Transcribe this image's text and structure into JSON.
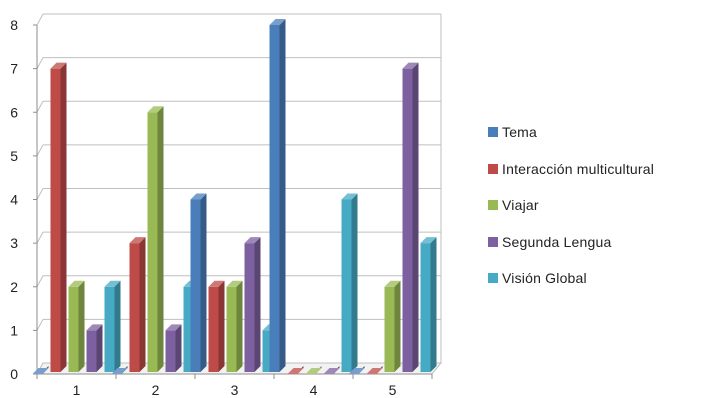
{
  "chart_data": {
    "type": "bar",
    "categories": [
      "1",
      "2",
      "3",
      "4",
      "5"
    ],
    "series": [
      {
        "name": "Tema",
        "values": [
          0,
          0,
          4,
          8,
          0
        ],
        "color": "#4a7ebb"
      },
      {
        "name": "Interacción multicultural",
        "values": [
          7,
          3,
          2,
          0,
          0
        ],
        "color": "#be4b48"
      },
      {
        "name": "Viajar",
        "values": [
          2,
          6,
          2,
          0,
          2
        ],
        "color": "#98b954"
      },
      {
        "name": "Segunda Lengua",
        "values": [
          1,
          1,
          3,
          0,
          7
        ],
        "color": "#7d60a0"
      },
      {
        "name": "Visión Global",
        "values": [
          2,
          2,
          1,
          4,
          3
        ],
        "color": "#46aac4"
      }
    ],
    "y_ticks": [
      "0",
      "1",
      "2",
      "3",
      "4",
      "5",
      "6",
      "7",
      "8"
    ],
    "ylim": [
      0,
      8
    ],
    "grid": true,
    "legend_position": "right",
    "title": "",
    "xlabel": "",
    "ylabel": ""
  }
}
